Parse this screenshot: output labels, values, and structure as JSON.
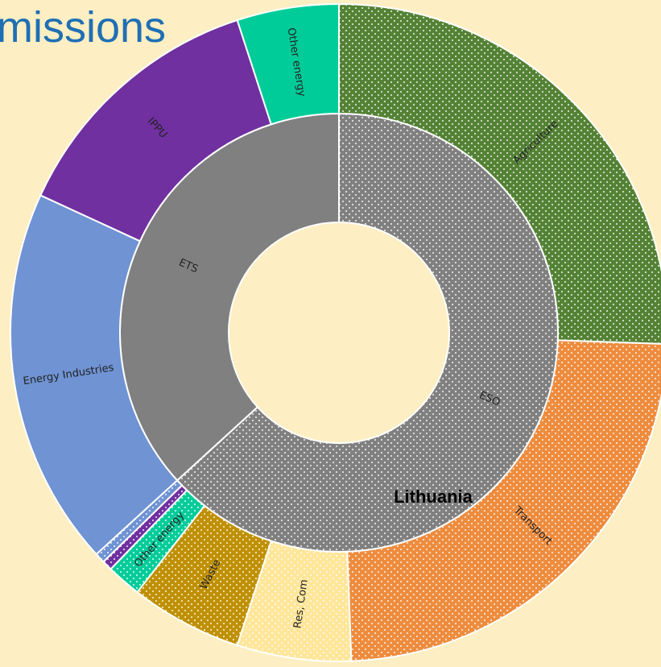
{
  "chart_data": {
    "type": "sunburst",
    "title": "missions",
    "annotation": "Lithuania",
    "rings": [
      {
        "name": "ESO",
        "value": 63.1,
        "color": "#808080",
        "dotted": true,
        "children": [
          {
            "name": "Agriculture",
            "value": 25.5,
            "color": "#548235"
          },
          {
            "name": "Transport",
            "value": 23.8,
            "color": "#ee8c3e"
          },
          {
            "name": "Res, Com",
            "value": 5.6,
            "color": "#ffe699"
          },
          {
            "name": "Waste",
            "value": 5.5,
            "color": "#bf9000"
          },
          {
            "name": "Other energy",
            "value": 1.7,
            "color": "#00cc99"
          },
          {
            "name": null,
            "value": 0.5,
            "color": "#7030a0"
          },
          {
            "name": null,
            "value": 0.5,
            "color": "#6f93d3"
          }
        ]
      },
      {
        "name": "ETS",
        "value": 36.7,
        "color": "#808080",
        "dotted": false,
        "children": [
          {
            "name": "Energy Industries",
            "value": 18.6,
            "color": "#6f93d3"
          },
          {
            "name": "IPPU",
            "value": 13.1,
            "color": "#7030a0"
          },
          {
            "name": "Other energy",
            "value": 5.0,
            "color": "#00cc99"
          }
        ]
      }
    ]
  }
}
